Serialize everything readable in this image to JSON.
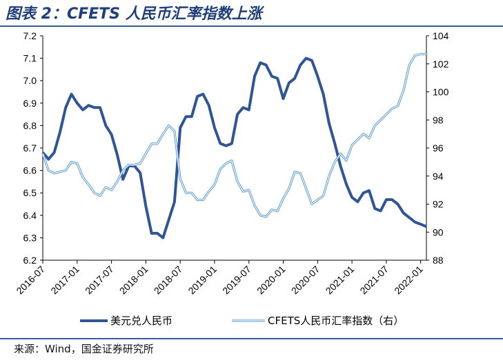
{
  "title": "图表 2：CFETS 人民币汇率指数上涨",
  "source": "来源：Wind，国金证券研究所",
  "colors": {
    "usdcny": "#2f5597",
    "cfets": "#5b9bd5",
    "axis": "#000000"
  },
  "chart_data": {
    "type": "line",
    "x": [
      "2016-07",
      "2016-08",
      "2016-09",
      "2016-10",
      "2016-11",
      "2016-12",
      "2017-01",
      "2017-02",
      "2017-03",
      "2017-04",
      "2017-05",
      "2017-06",
      "2017-07",
      "2017-08",
      "2017-09",
      "2017-10",
      "2017-11",
      "2017-12",
      "2018-01",
      "2018-02",
      "2018-03",
      "2018-04",
      "2018-05",
      "2018-06",
      "2018-07",
      "2018-08",
      "2018-09",
      "2018-10",
      "2018-11",
      "2018-12",
      "2019-01",
      "2019-02",
      "2019-03",
      "2019-04",
      "2019-05",
      "2019-06",
      "2019-07",
      "2019-08",
      "2019-09",
      "2019-10",
      "2019-11",
      "2019-12",
      "2020-01",
      "2020-02",
      "2020-03",
      "2020-04",
      "2020-05",
      "2020-06",
      "2020-07",
      "2020-08",
      "2020-09",
      "2020-10",
      "2020-11",
      "2020-12",
      "2021-01",
      "2021-02",
      "2021-03",
      "2021-04",
      "2021-05",
      "2021-06",
      "2021-07",
      "2021-08",
      "2021-09",
      "2021-10",
      "2021-11",
      "2021-12",
      "2022-01",
      "2022-02"
    ],
    "x_tick_labels": [
      "2016-07",
      "2017-01",
      "2017-07",
      "2018-01",
      "2018-07",
      "2019-01",
      "2019-07",
      "2020-01",
      "2020-07",
      "2021-01",
      "2021-07",
      "2022-01"
    ],
    "y_left": {
      "min": 6.2,
      "max": 7.2,
      "ticks": [
        "6.2",
        "6.3",
        "6.4",
        "6.5",
        "6.6",
        "6.7",
        "6.8",
        "6.9",
        "7.0",
        "7.1",
        "7.2"
      ]
    },
    "y_right": {
      "min": 88,
      "max": 104,
      "ticks": [
        "88",
        "90",
        "92",
        "94",
        "96",
        "98",
        "100",
        "102",
        "104"
      ]
    },
    "series": [
      {
        "name": "美元兑人民币",
        "axis": "left",
        "stroke_width": 4,
        "values": [
          6.68,
          6.65,
          6.68,
          6.77,
          6.88,
          6.94,
          6.9,
          6.87,
          6.89,
          6.88,
          6.88,
          6.8,
          6.76,
          6.67,
          6.56,
          6.62,
          6.62,
          6.59,
          6.44,
          6.32,
          6.32,
          6.3,
          6.38,
          6.46,
          6.79,
          6.84,
          6.84,
          6.93,
          6.94,
          6.89,
          6.79,
          6.72,
          6.71,
          6.72,
          6.85,
          6.88,
          6.87,
          7.02,
          7.08,
          7.07,
          7.02,
          7.01,
          6.92,
          6.99,
          7.01,
          7.07,
          7.1,
          7.09,
          7.02,
          6.94,
          6.81,
          6.72,
          6.62,
          6.54,
          6.48,
          6.46,
          6.5,
          6.51,
          6.43,
          6.42,
          6.47,
          6.47,
          6.45,
          6.41,
          6.39,
          6.37,
          6.36,
          6.35
        ]
      },
      {
        "name": "CFETS人民币汇率指数（右）",
        "axis": "right",
        "stroke_width": 1.5,
        "values": [
          95.6,
          94.4,
          94.2,
          94.3,
          94.4,
          95.0,
          94.9,
          93.9,
          93.4,
          92.8,
          92.6,
          93.2,
          93.0,
          93.6,
          94.4,
          94.8,
          94.8,
          94.9,
          95.6,
          96.3,
          96.3,
          97.0,
          97.6,
          97.2,
          93.8,
          92.8,
          92.8,
          92.3,
          92.3,
          92.9,
          93.4,
          94.5,
          94.9,
          95.1,
          93.6,
          92.9,
          93.0,
          91.9,
          91.2,
          91.1,
          91.6,
          91.5,
          92.4,
          93.1,
          94.3,
          94.2,
          93.1,
          92.0,
          92.3,
          92.6,
          94.0,
          95.0,
          95.6,
          95.1,
          96.2,
          96.6,
          97.0,
          96.7,
          97.6,
          98.0,
          98.4,
          98.8,
          99.0,
          100.1,
          101.9,
          102.6,
          102.7,
          102.7
        ]
      }
    ],
    "legend": {
      "position": "bottom"
    },
    "grid": false
  }
}
